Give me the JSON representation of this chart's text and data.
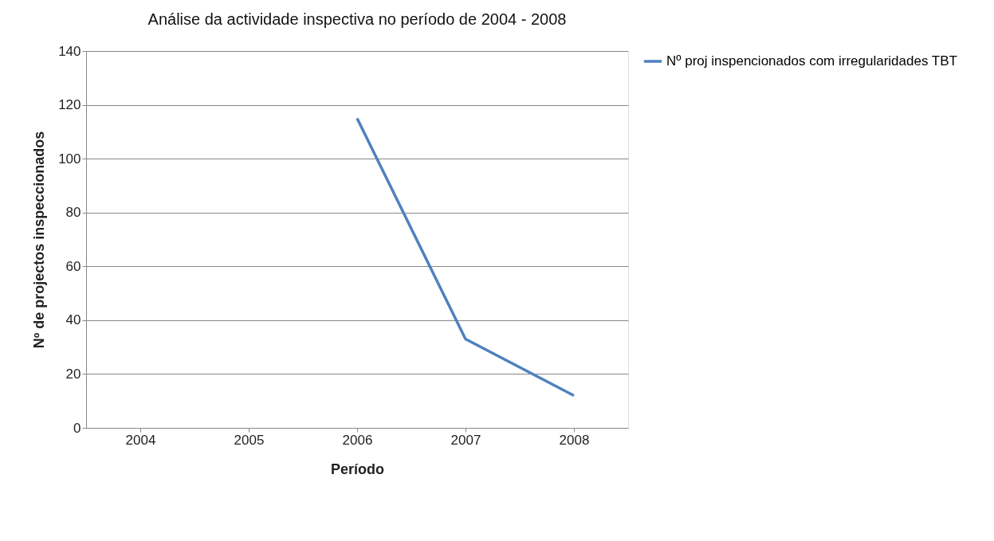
{
  "chart_data": {
    "type": "line",
    "title": "Análise da actividade inspectiva no período de 2004 - 2008",
    "xlabel": "Período",
    "ylabel": "Nº de projectos inspeccionados",
    "categories": [
      "2004",
      "2005",
      "2006",
      "2007",
      "2008"
    ],
    "series": [
      {
        "name": "Nº proj inspencionados com irregularidades TBT",
        "color": "#4f81bd",
        "values": [
          null,
          null,
          115,
          33,
          12
        ]
      }
    ],
    "ylim": [
      0,
      140
    ],
    "yticks": [
      0,
      20,
      40,
      60,
      80,
      100,
      120,
      140
    ],
    "grid": "y",
    "legend": "right",
    "marker": "none",
    "line_style": "solid"
  }
}
